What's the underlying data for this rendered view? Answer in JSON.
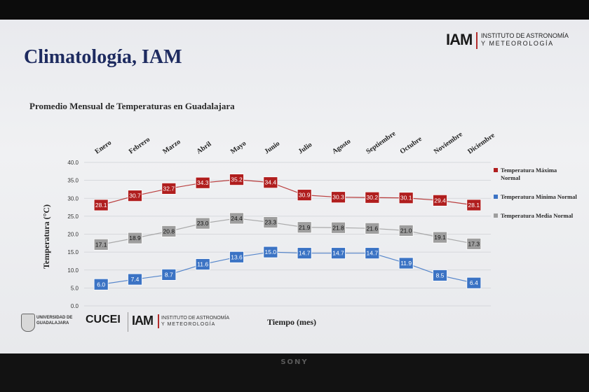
{
  "slide": {
    "title": "Climatología, IAM",
    "header_logo": {
      "mark": "IAM",
      "line1": "INSTITUTO DE ASTRONOMÍA",
      "line2": "Y METEOROLOGÍA"
    },
    "footer_logos": {
      "udg_line1": "UNIVERSIDAD DE",
      "udg_line2": "GUADALAJARA",
      "cucei": "CUCEI",
      "iam_mark": "IAM",
      "iam_line1": "INSTITUTO DE ASTRONOMÍA",
      "iam_line2": "Y METEOROLOGÍA"
    },
    "device_brand": "SONY"
  },
  "colors": {
    "max": "#b01e1e",
    "min": "#3b73c4",
    "media": "#9e9e9e",
    "title": "#1e2b60"
  },
  "chart_data": {
    "type": "line",
    "title": "Promedio Mensual de Temperaturas en Guadalajara",
    "xlabel": "Tiempo (mes)",
    "ylabel": "Temperatura (°C)",
    "categories": [
      "Enero",
      "Febrero",
      "Marzo",
      "Abril",
      "Mayo",
      "Junio",
      "Julio",
      "Agosto",
      "Septiembre",
      "Octubre",
      "Noviembre",
      "Diciembre"
    ],
    "ylim": [
      0,
      40
    ],
    "yticks": [
      "0.0",
      "5.0",
      "10.0",
      "15.0",
      "20.0",
      "25.0",
      "30.0",
      "35.0",
      "40.0"
    ],
    "grid": true,
    "legend_position": "right",
    "series": [
      {
        "name": "Temperatura Máxima Normal",
        "color": "#b01e1e",
        "values": [
          28.1,
          30.7,
          32.7,
          34.3,
          35.2,
          34.4,
          30.9,
          30.3,
          30.2,
          30.1,
          29.4,
          28.1
        ],
        "labels": [
          "28.1",
          "30.7",
          "32.7",
          "34.3",
          "35.2",
          "34.4",
          "30.9",
          "30.3",
          "30.2",
          "30.1",
          "29.4",
          "28.1"
        ]
      },
      {
        "name": "Temperatura Mínima Normal",
        "color": "#3b73c4",
        "values": [
          6.0,
          7.4,
          8.7,
          11.6,
          13.6,
          15.0,
          14.7,
          14.7,
          14.7,
          11.9,
          8.5,
          6.4
        ],
        "labels": [
          "6.0",
          "7.4",
          "8.7",
          "11.6",
          "13.6",
          "15.0",
          "14.7",
          "14.7",
          "14.7",
          "11.9",
          "8.5",
          "6.4"
        ]
      },
      {
        "name": "Temperatura Media Normal",
        "color": "#9e9e9e",
        "values": [
          17.1,
          18.9,
          20.8,
          23.0,
          24.4,
          23.3,
          21.9,
          21.8,
          21.6,
          21.0,
          19.1,
          17.3
        ],
        "labels": [
          "17.1",
          "18.9",
          "20.8",
          "23.0",
          "24.4",
          "23.3",
          "21.9",
          "21.8",
          "21.6",
          "21.0",
          "19.1",
          "17.3"
        ]
      }
    ]
  }
}
